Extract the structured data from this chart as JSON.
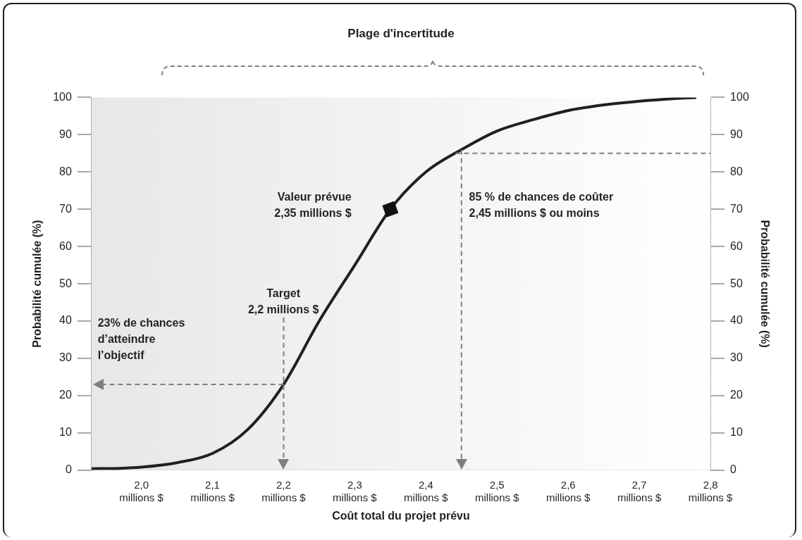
{
  "chart_data": {
    "type": "line",
    "title": "Plage d'incertitude",
    "xlabel": "Coût total du projet prévu",
    "ylabel": "Probabilité cumulée (%)",
    "y2label": "Probabilité cumulée (%)",
    "series": [
      {
        "color": "#231f20",
        "x": [
          1930000,
          1970000,
          2000000,
          2050000,
          2100000,
          2150000,
          2200000,
          2250000,
          2300000,
          2350000,
          2400000,
          2450000,
          2500000,
          2550000,
          2600000,
          2650000,
          2700000,
          2750000,
          2780000
        ],
        "values": [
          0.4,
          0.5,
          0.8,
          2,
          4.5,
          11,
          23,
          40,
          55,
          70,
          80,
          86,
          91,
          94,
          96.5,
          98,
          99,
          99.7,
          100
        ]
      },
      {
        "type": "scatter",
        "color": "#111111",
        "marker": "diamond",
        "x": [
          2350000
        ],
        "values": [
          70
        ]
      }
    ],
    "xlim": [
      1930000,
      2800000
    ],
    "xticks": [
      {
        "value": 2000000,
        "label": "2,0 millions $"
      },
      {
        "value": 2100000,
        "label": "2,1 millions $"
      },
      {
        "value": 2200000,
        "label": "2,2 millions $"
      },
      {
        "value": 2300000,
        "label": "2,3 millions $"
      },
      {
        "value": 2400000,
        "label": "2,4 millions $"
      },
      {
        "value": 2500000,
        "label": "2,5 millions $"
      },
      {
        "value": 2600000,
        "label": "2,6 millions $"
      },
      {
        "value": 2700000,
        "label": "2,7 millions $"
      },
      {
        "value": 2800000,
        "label": "2,8 millions $"
      }
    ],
    "ylim": [
      0,
      100
    ],
    "yticks": [
      0,
      10,
      20,
      30,
      40,
      50,
      60,
      70,
      80,
      90,
      100
    ],
    "y2lim": [
      0,
      100
    ],
    "y2ticks": [
      0,
      10,
      20,
      30,
      40,
      50,
      60,
      70,
      80,
      90,
      100
    ],
    "ref_lines": [
      {
        "axis": "x",
        "value": 2200000,
        "color": "#7f7f7f",
        "line_style": "dashed"
      },
      {
        "axis": "x",
        "value": 2450000,
        "color": "#7f7f7f",
        "line_style": "dashed"
      },
      {
        "axis": "y",
        "value": 23,
        "color": "#7f7f7f",
        "line_style": "dashed"
      },
      {
        "axis": "y",
        "value": 85,
        "color": "#7f7f7f",
        "line_style": "dashed"
      }
    ],
    "annotations": [
      "Target\n2,2 millions $",
      "Valeur prévue\n2,35 millions $",
      "23% de chances\nd’atteindre\nl’objectif",
      "85 % de chances de coûter\n2,45 millions $ ou moins"
    ],
    "grid": false,
    "legend": false,
    "line_style": "solid"
  }
}
